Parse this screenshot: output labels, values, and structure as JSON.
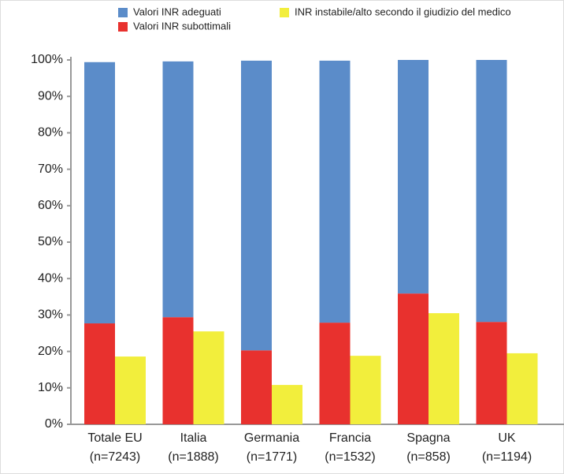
{
  "chart_data": {
    "type": "stacked_grouped_bar",
    "categories": [
      [
        "Totale EU",
        "(n=7243)"
      ],
      [
        "Italia",
        "(n=1888)"
      ],
      [
        "Germania",
        "(n=1771)"
      ],
      [
        "Francia",
        "(n=1532)"
      ],
      [
        "Spagna",
        "(n=858)"
      ],
      [
        "UK",
        "(n=1194)"
      ]
    ],
    "series": [
      {
        "name": "Valori INR subottimali",
        "color": "#e8312e",
        "stack": "a",
        "values": [
          27.7,
          29.4,
          20.3,
          27.9,
          35.9,
          28.1
        ]
      },
      {
        "name": "Valori INR adeguati",
        "color": "#5b8cc9",
        "stack": "a",
        "values": [
          71.7,
          70.2,
          79.5,
          71.9,
          64.1,
          71.9
        ]
      },
      {
        "name": "INR instabile/alto secondo il giudizio del medico",
        "color": "#f2ee3c",
        "stack": "b",
        "values": [
          18.6,
          25.5,
          10.8,
          18.8,
          30.5,
          19.5
        ]
      }
    ],
    "ylim": [
      0,
      100
    ],
    "yticks": [
      {
        "value": 0,
        "label": "0%"
      },
      {
        "value": 10,
        "label": "10%"
      },
      {
        "value": 20,
        "label": "20%"
      },
      {
        "value": 30,
        "label": "30%"
      },
      {
        "value": 40,
        "label": "40%"
      },
      {
        "value": 50,
        "label": "50%"
      },
      {
        "value": 60,
        "label": "60%"
      },
      {
        "value": 70,
        "label": "70%"
      },
      {
        "value": 80,
        "label": "80%"
      },
      {
        "value": 90,
        "label": "90%"
      },
      {
        "value": 100,
        "label": "100%"
      }
    ],
    "grid": false
  }
}
